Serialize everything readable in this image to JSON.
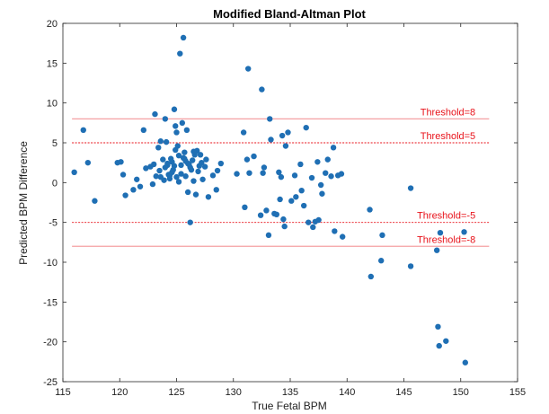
{
  "chart_data": {
    "type": "scatter",
    "title": "Modified Bland-Altman Plot",
    "xlabel": "True Fetal BPM",
    "ylabel": "Predicted BPM Difference",
    "xlim": [
      115,
      155
    ],
    "ylim": [
      -25,
      20
    ],
    "xticks": [
      "115",
      "120",
      "125",
      "130",
      "135",
      "140",
      "145",
      "150",
      "155"
    ],
    "yticks": [
      "-25",
      "-20",
      "-15",
      "-10",
      "-5",
      "0",
      "5",
      "10",
      "15",
      "20"
    ],
    "grid": false,
    "colors": {
      "points": "#1f6fb4",
      "threshold8": "#f5a0a3",
      "threshold5": "#e8131b",
      "label": "#e8131b"
    },
    "thresholds": [
      {
        "value": 8,
        "label": "Threshold=8",
        "style": "solid"
      },
      {
        "value": 5,
        "label": "Threshold=5",
        "style": "dashed"
      },
      {
        "value": -5,
        "label": "Threshold=-5",
        "style": "dashed"
      },
      {
        "value": -8,
        "label": "Threshold=-8",
        "style": "solid"
      }
    ],
    "points": [
      [
        116.0,
        1.3
      ],
      [
        116.8,
        6.6
      ],
      [
        117.2,
        2.5
      ],
      [
        117.8,
        -2.3
      ],
      [
        119.8,
        2.5
      ],
      [
        120.1,
        2.6
      ],
      [
        120.3,
        1.0
      ],
      [
        120.5,
        -1.6
      ],
      [
        121.2,
        -0.9
      ],
      [
        121.5,
        0.4
      ],
      [
        121.8,
        -0.5
      ],
      [
        122.1,
        6.6
      ],
      [
        122.3,
        1.8
      ],
      [
        122.7,
        2.0
      ],
      [
        122.9,
        -0.2
      ],
      [
        123.1,
        8.6
      ],
      [
        123.2,
        0.8
      ],
      [
        123.4,
        4.4
      ],
      [
        123.5,
        1.5
      ],
      [
        123.6,
        5.2
      ],
      [
        123.8,
        2.9
      ],
      [
        123.9,
        0.3
      ],
      [
        124.0,
        8.0
      ],
      [
        124.1,
        5.1
      ],
      [
        124.2,
        2.2
      ],
      [
        124.3,
        1.0
      ],
      [
        124.4,
        0.5
      ],
      [
        124.5,
        3.0
      ],
      [
        124.6,
        2.6
      ],
      [
        124.7,
        1.6
      ],
      [
        124.8,
        9.2
      ],
      [
        124.9,
        7.1
      ],
      [
        125.0,
        6.3
      ],
      [
        125.1,
        4.6
      ],
      [
        125.2,
        3.4
      ],
      [
        125.3,
        16.2
      ],
      [
        125.4,
        2.2
      ],
      [
        125.5,
        7.5
      ],
      [
        125.6,
        18.2
      ],
      [
        125.7,
        3.0
      ],
      [
        125.8,
        0.8
      ],
      [
        125.9,
        6.6
      ],
      [
        126.0,
        -1.2
      ],
      [
        126.1,
        2.3
      ],
      [
        126.2,
        -5.0
      ],
      [
        126.3,
        1.6
      ],
      [
        126.4,
        2.8
      ],
      [
        126.5,
        0.2
      ],
      [
        126.6,
        3.5
      ],
      [
        126.7,
        -1.5
      ],
      [
        126.8,
        4.0
      ],
      [
        126.9,
        1.4
      ],
      [
        127.0,
        2.1
      ],
      [
        127.1,
        3.5
      ],
      [
        127.3,
        0.4
      ],
      [
        127.5,
        2.0
      ],
      [
        127.6,
        2.9
      ],
      [
        127.8,
        -1.8
      ],
      [
        124.2,
        2.4
      ],
      [
        124.6,
        1.3
      ],
      [
        125.0,
        0.7
      ],
      [
        125.4,
        1.1
      ],
      [
        125.8,
        2.7
      ],
      [
        126.2,
        1.9
      ],
      [
        124.0,
        1.9
      ],
      [
        124.4,
        0.9
      ],
      [
        124.8,
        2.1
      ],
      [
        125.2,
        0.1
      ],
      [
        125.6,
        3.1
      ],
      [
        126.0,
        2.4
      ],
      [
        123.0,
        2.3
      ],
      [
        123.6,
        0.7
      ],
      [
        124.9,
        4.1
      ],
      [
        125.7,
        3.8
      ],
      [
        126.5,
        3.9
      ],
      [
        127.2,
        2.5
      ],
      [
        128.2,
        0.9
      ],
      [
        128.5,
        -0.9
      ],
      [
        128.9,
        2.4
      ],
      [
        128.6,
        1.5
      ],
      [
        130.3,
        1.1
      ],
      [
        130.9,
        6.3
      ],
      [
        131.0,
        -3.1
      ],
      [
        131.2,
        2.9
      ],
      [
        131.3,
        14.3
      ],
      [
        131.4,
        1.2
      ],
      [
        131.8,
        3.3
      ],
      [
        132.4,
        -4.1
      ],
      [
        132.5,
        11.7
      ],
      [
        132.6,
        1.2
      ],
      [
        132.7,
        1.9
      ],
      [
        132.9,
        -3.5
      ],
      [
        133.1,
        -6.6
      ],
      [
        133.2,
        8.0
      ],
      [
        133.3,
        5.4
      ],
      [
        133.6,
        -3.9
      ],
      [
        133.8,
        -4.0
      ],
      [
        134.0,
        1.3
      ],
      [
        134.1,
        -2.1
      ],
      [
        134.2,
        0.7
      ],
      [
        134.3,
        5.9
      ],
      [
        134.4,
        -4.6
      ],
      [
        134.5,
        -5.5
      ],
      [
        134.6,
        4.6
      ],
      [
        134.8,
        6.3
      ],
      [
        135.1,
        -2.3
      ],
      [
        135.4,
        0.9
      ],
      [
        135.9,
        2.3
      ],
      [
        136.2,
        -2.9
      ],
      [
        136.4,
        6.9
      ],
      [
        136.6,
        -5.0
      ],
      [
        136.9,
        0.6
      ],
      [
        137.0,
        -5.6
      ],
      [
        137.2,
        -4.9
      ],
      [
        137.4,
        2.6
      ],
      [
        137.5,
        -4.7
      ],
      [
        137.8,
        -1.4
      ],
      [
        138.1,
        1.2
      ],
      [
        138.3,
        2.9
      ],
      [
        138.6,
        0.8
      ],
      [
        138.8,
        4.4
      ],
      [
        138.9,
        -6.1
      ],
      [
        139.2,
        0.9
      ],
      [
        139.6,
        -6.8
      ],
      [
        139.5,
        1.1
      ],
      [
        136.0,
        -1.0
      ],
      [
        135.5,
        -1.8
      ],
      [
        137.7,
        -0.3
      ],
      [
        142.0,
        -3.4
      ],
      [
        142.1,
        -11.8
      ],
      [
        143.0,
        -9.8
      ],
      [
        143.1,
        -6.6
      ],
      [
        145.6,
        -0.7
      ],
      [
        145.6,
        -10.5
      ],
      [
        147.9,
        -8.5
      ],
      [
        148.0,
        -18.1
      ],
      [
        148.1,
        -20.5
      ],
      [
        148.2,
        -6.3
      ],
      [
        148.7,
        -19.9
      ],
      [
        150.3,
        -6.2
      ],
      [
        150.4,
        -22.6
      ]
    ]
  }
}
